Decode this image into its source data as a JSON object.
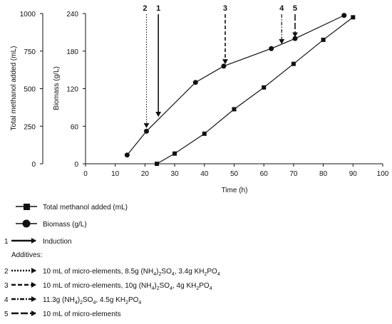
{
  "chart_data": {
    "type": "line",
    "xlabel": "Time (h)",
    "y_left_label": "Total methanol added (mL)",
    "y_right_label": "Biomass (g/L)",
    "xlim": [
      0,
      100
    ],
    "y_left_lim": [
      0,
      1000
    ],
    "y_right_lim": [
      0,
      240
    ],
    "x_ticks": [
      "0",
      "10",
      "20",
      "30",
      "40",
      "50",
      "60",
      "70",
      "80",
      "90",
      "100"
    ],
    "y_left_ticks": [
      "0",
      "250",
      "500",
      "750",
      "1000"
    ],
    "y_right_ticks": [
      "0",
      "60",
      "120",
      "180",
      "240"
    ],
    "series": [
      {
        "name": "Total methanol added (mL)",
        "marker": "square",
        "axis": "left",
        "points": [
          [
            24,
            0
          ],
          [
            30,
            68
          ],
          [
            40,
            200
          ],
          [
            50,
            363
          ],
          [
            60,
            508
          ],
          [
            70,
            665
          ],
          [
            80,
            825
          ],
          [
            90,
            975
          ]
        ]
      },
      {
        "name": "Biomass (g/L)",
        "marker": "circle",
        "axis": "right",
        "points": [
          [
            14,
            14
          ],
          [
            20.5,
            52
          ],
          [
            37,
            130
          ],
          [
            46.5,
            156
          ],
          [
            62.5,
            184
          ],
          [
            70.5,
            200
          ],
          [
            87,
            237
          ]
        ]
      }
    ],
    "arrows": [
      {
        "label": "1",
        "x": 24.5,
        "y_tip": 74,
        "style": "solid"
      },
      {
        "label": "2",
        "x": 20.5,
        "y_tip": 56,
        "style": "dotted"
      },
      {
        "label": "3",
        "x": 47,
        "y_tip": 158,
        "style": "dashed"
      },
      {
        "label": "4",
        "x": 66,
        "y_tip": 190,
        "style": "dashdot"
      },
      {
        "label": "5",
        "x": 70.5,
        "y_tip": 201,
        "style": "longdash"
      }
    ],
    "legend": {
      "placement": "bottom",
      "series": [
        "Total methanol added (mL)",
        "Biomass (g/L)"
      ],
      "induction": {
        "num": "1",
        "text": "Induction"
      },
      "additives_title": "Additives:",
      "additives": [
        {
          "num": "2",
          "text": "10 mL of micro-elements, 8.5g (NH4)2SO4, 3.4g KH2PO4"
        },
        {
          "num": "3",
          "text": "10 mL of micro-elements, 10g (NH4)2SO4, 4g KH2PO4"
        },
        {
          "num": "4",
          "text": "11.3g (NH4)2SO4, 4.5g KH2PO4"
        },
        {
          "num": "5",
          "text": "10 mL of micro-elements"
        }
      ]
    },
    "grid": false
  }
}
